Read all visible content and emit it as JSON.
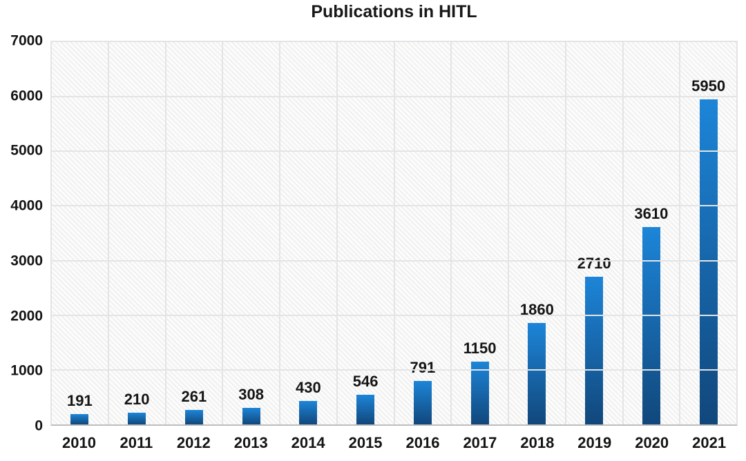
{
  "chart_data": {
    "type": "bar",
    "title": "Publications in HITL",
    "categories": [
      "2010",
      "2011",
      "2012",
      "2013",
      "2014",
      "2015",
      "2016",
      "2017",
      "2018",
      "2019",
      "2020",
      "2021"
    ],
    "values": [
      191,
      210,
      261,
      308,
      430,
      546,
      791,
      1150,
      1860,
      2710,
      3610,
      5950
    ],
    "xlabel": "",
    "ylabel": "",
    "ylim": [
      0,
      7000
    ],
    "yticks": [
      0,
      1000,
      2000,
      3000,
      4000,
      5000,
      6000,
      7000
    ],
    "grid": true,
    "legend": false,
    "data_labels": true,
    "colors": {
      "bar_top": "#1d85d8",
      "bar_bottom": "#11477b",
      "gridline": "#e4e4e4",
      "axis_line": "#bdbdbd",
      "text": "#141414",
      "plot_background": "#fbfbfb"
    }
  }
}
